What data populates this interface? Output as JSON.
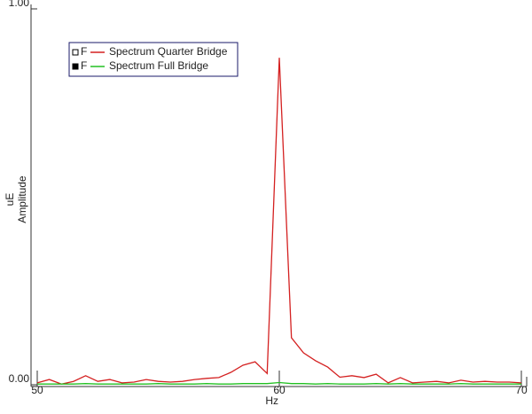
{
  "chart_data": {
    "type": "line",
    "x_label": "Hz",
    "y_label_unit": "uE",
    "y_label": "Amplitude",
    "legend_prefix": "F",
    "x": [
      50,
      50.5,
      51,
      51.5,
      52,
      52.5,
      53,
      53.5,
      54,
      54.5,
      55,
      55.5,
      56,
      56.5,
      57,
      57.5,
      58,
      58.5,
      59,
      59.5,
      60,
      60.5,
      61,
      61.5,
      62,
      62.5,
      63,
      63.5,
      64,
      64.5,
      65,
      65.5,
      66,
      66.5,
      67,
      67.5,
      68,
      68.5,
      69,
      69.5,
      70
    ],
    "series": [
      {
        "name": "Spectrum Quarter Bridge",
        "color": "#d42020",
        "marker": "open",
        "values": [
          0.005,
          0.014,
          0.002,
          0.009,
          0.024,
          0.009,
          0.014,
          0.005,
          0.007,
          0.014,
          0.009,
          0.007,
          0.009,
          0.014,
          0.017,
          0.019,
          0.033,
          0.052,
          0.061,
          0.03,
          0.87,
          0.125,
          0.085,
          0.064,
          0.047,
          0.02,
          0.024,
          0.019,
          0.028,
          0.005,
          0.019,
          0.005,
          0.007,
          0.009,
          0.005,
          0.012,
          0.007,
          0.009,
          0.007,
          0.007,
          0.005
        ]
      },
      {
        "name": "Spectrum Full Bridge",
        "color": "#22c022",
        "marker": "filled",
        "values": [
          0.002,
          0.002,
          0.002,
          0.002,
          0.003,
          0.002,
          0.002,
          0.002,
          0.002,
          0.002,
          0.003,
          0.002,
          0.002,
          0.002,
          0.003,
          0.002,
          0.002,
          0.003,
          0.003,
          0.003,
          0.006,
          0.003,
          0.003,
          0.002,
          0.003,
          0.002,
          0.002,
          0.002,
          0.003,
          0.002,
          0.003,
          0.002,
          0.002,
          0.002,
          0.002,
          0.003,
          0.002,
          0.002,
          0.002,
          0.002,
          0.002
        ]
      }
    ],
    "xlim": [
      50,
      70
    ],
    "xticks": [
      50,
      60,
      70
    ],
    "ylim": [
      0,
      1
    ],
    "yticks": [
      {
        "value": 0,
        "label": "0.00"
      },
      {
        "value": 1,
        "label": "1.00"
      }
    ],
    "legend_position": "upper left"
  }
}
